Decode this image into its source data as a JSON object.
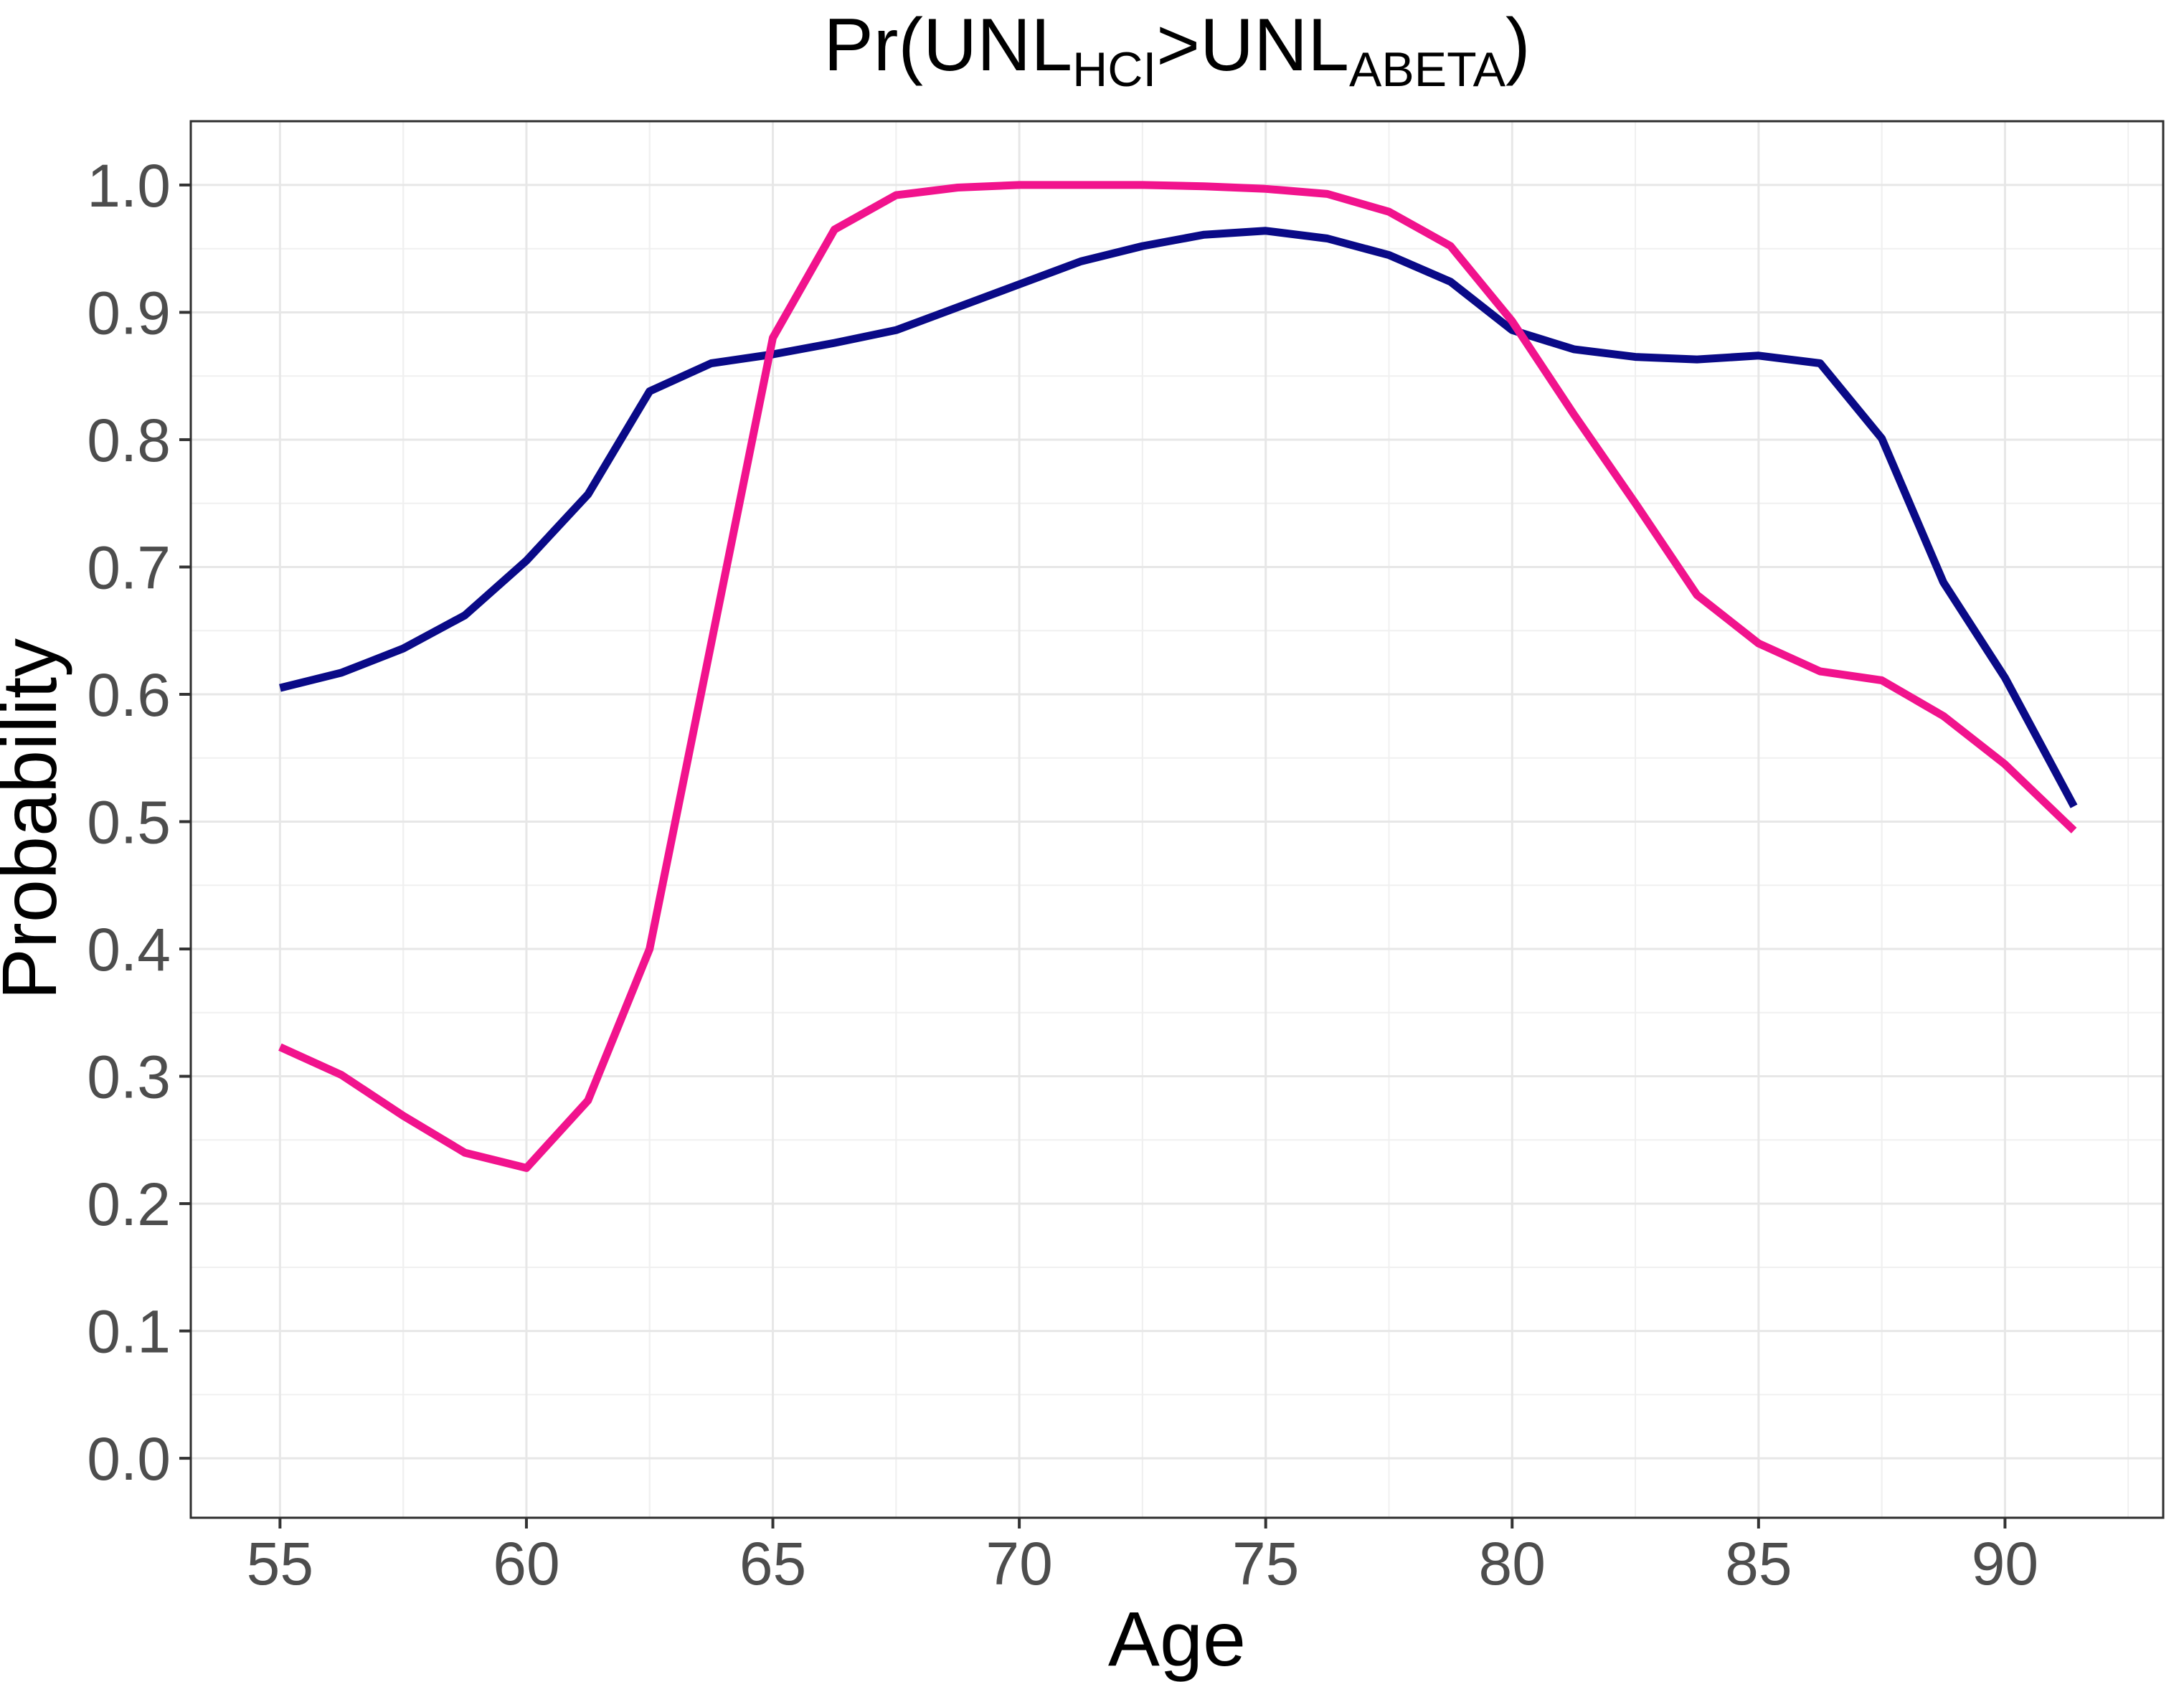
{
  "title": {
    "part1": "Pr(UNL",
    "sub1": "HCI",
    "part2": ">UNL",
    "sub2": "ABETA",
    "part3": ")"
  },
  "axes": {
    "x_label": "Age",
    "y_label": "Probability"
  },
  "colors": {
    "navy_line": "#0A0A87",
    "magenta_line": "#F1138D",
    "grid_major": "#E7E7E7",
    "grid_minor": "#F0F0F0",
    "panel_border": "#2F2F2F",
    "tick_mark": "#333333",
    "tick_label": "#4D4D4D",
    "text_black": "#000000",
    "background": "#FFFFFF"
  },
  "chart_data": {
    "type": "line",
    "title": "Pr(UNL_HCI > UNL_ABETA)",
    "xlabel": "Age",
    "ylabel": "Probability",
    "x_ticks": [
      55,
      60,
      65,
      70,
      75,
      80,
      85,
      90
    ],
    "y_ticks": [
      0.0,
      0.1,
      0.2,
      0.3,
      0.4,
      0.5,
      0.6,
      0.7,
      0.8,
      0.9,
      1.0
    ],
    "x_minor_step": 2.5,
    "y_minor_step": 0.05,
    "xlim": [
      53.19,
      93.21
    ],
    "ylim": [
      -0.0467,
      1.0501
    ],
    "grid": "major+minor",
    "legend": "none",
    "x": [
      55,
      56.25,
      57.5,
      58.75,
      60,
      61.25,
      62.5,
      63.75,
      65,
      66.25,
      67.5,
      68.75,
      70,
      71.25,
      72.5,
      73.75,
      75,
      76.25,
      77.5,
      78.75,
      80,
      81.25,
      82.5,
      83.75,
      85,
      86.25,
      87.5,
      88.75,
      90,
      91.4
    ],
    "series": [
      {
        "name": "UNL_HCI navy curve",
        "color": "#0A0A87",
        "values": [
          0.605,
          0.617,
          0.636,
          0.662,
          0.705,
          0.757,
          0.838,
          0.86,
          0.867,
          0.876,
          0.886,
          0.904,
          0.922,
          0.94,
          0.952,
          0.961,
          0.964,
          0.958,
          0.945,
          0.924,
          0.886,
          0.871,
          0.865,
          0.863,
          0.866,
          0.86,
          0.801,
          0.688,
          0.613,
          0.512
        ]
      },
      {
        "name": "UNL_ABETA magenta curve",
        "color": "#F1138D",
        "values": [
          0.323,
          0.301,
          0.269,
          0.24,
          0.228,
          0.281,
          0.4,
          0.64,
          0.88,
          0.965,
          0.992,
          0.998,
          1.0,
          1.0,
          1.0,
          0.999,
          0.997,
          0.993,
          0.979,
          0.952,
          0.893,
          0.82,
          0.75,
          0.678,
          0.64,
          0.618,
          0.611,
          0.583,
          0.545,
          0.493
        ]
      }
    ]
  }
}
